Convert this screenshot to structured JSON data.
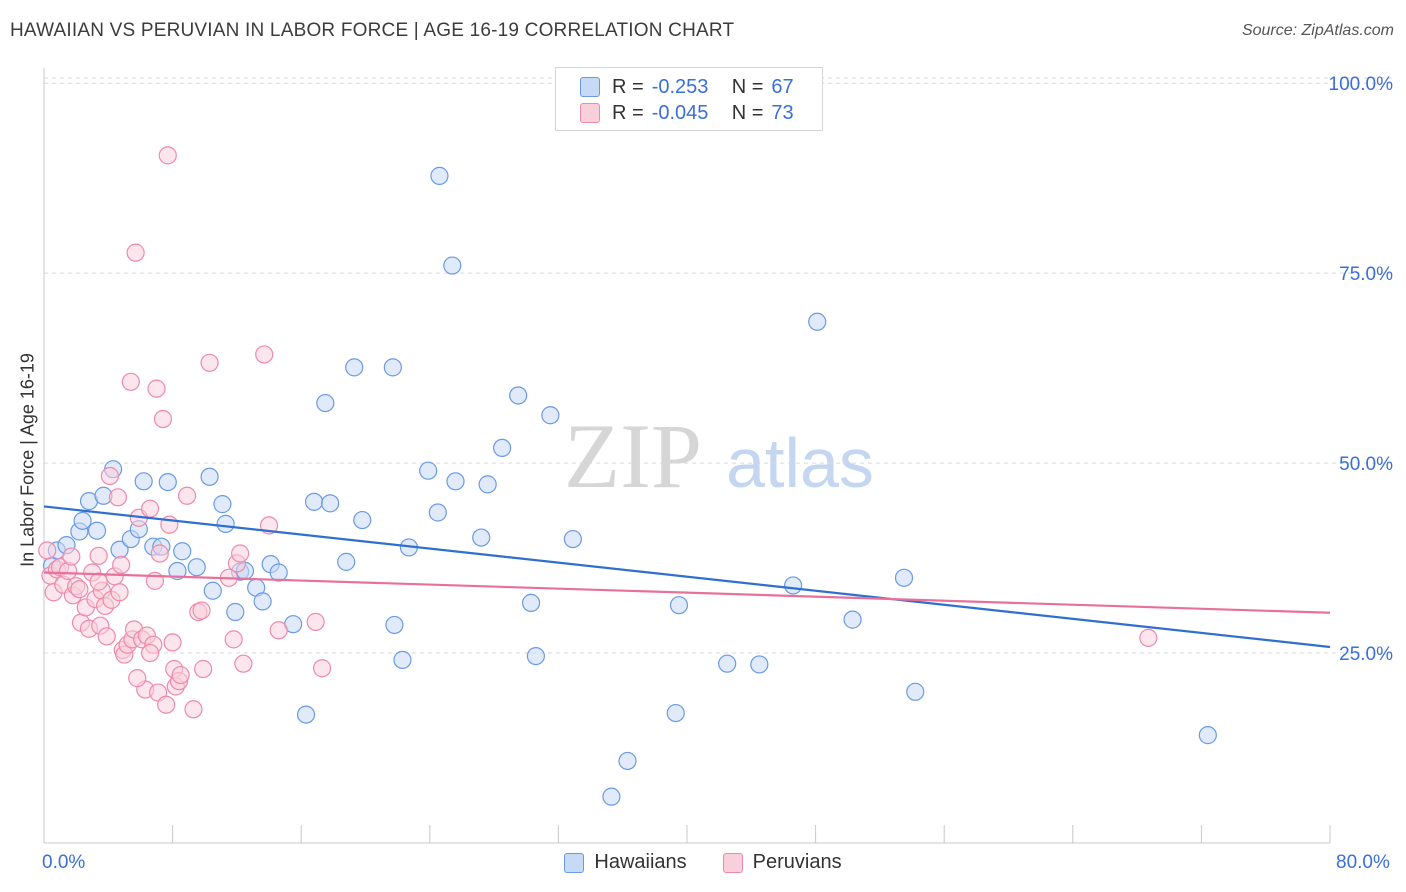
{
  "title": "HAWAIIAN VS PERUVIAN IN LABOR FORCE | AGE 16-19 CORRELATION CHART",
  "source": "Source: ZipAtlas.com",
  "watermark": {
    "zip": "ZIP",
    "atlas": "atlas"
  },
  "legend_stats": [
    {
      "r_label": "R =",
      "r_value": "-0.253",
      "n_label": "N =",
      "n_value": "67",
      "color": "#6a9ae6",
      "fill": "#c6d9f5"
    },
    {
      "r_label": "R =",
      "r_value": "-0.045",
      "n_label": "N =",
      "n_value": "73",
      "color": "#ee8aaa",
      "fill": "#f9cfdc"
    }
  ],
  "chart_data": {
    "type": "scatter",
    "title": "HAWAIIAN VS PERUVIAN IN LABOR FORCE | AGE 16-19 CORRELATION CHART",
    "xlabel": "",
    "ylabel": "In Labor Force | Age 16-19",
    "xlim": [
      0,
      80
    ],
    "ylim": [
      0,
      102
    ],
    "x_tick_labels": [
      "0.0%",
      "80.0%"
    ],
    "y_tick_labels": [
      "25.0%",
      "50.0%",
      "75.0%",
      "100.0%"
    ],
    "y_ticks": [
      25,
      50,
      75,
      100
    ],
    "grid": "horizontal dashed",
    "legend_position": "bottom-center",
    "series": [
      {
        "name": "Hawaiians",
        "color": "#6a9ae6",
        "fill": "#c6d9f5",
        "trend_color": "#2f6fd0",
        "trend": [
          [
            0,
            44.3
          ],
          [
            80,
            25.8
          ]
        ],
        "points": [
          [
            0.5,
            36.5
          ],
          [
            0.8,
            38.5
          ],
          [
            1.4,
            39.2
          ],
          [
            2.2,
            41.0
          ],
          [
            2.4,
            42.4
          ],
          [
            2.8,
            45.0
          ],
          [
            3.3,
            41.1
          ],
          [
            3.7,
            45.7
          ],
          [
            4.3,
            49.2
          ],
          [
            4.7,
            38.6
          ],
          [
            5.4,
            40.0
          ],
          [
            5.9,
            41.3
          ],
          [
            6.2,
            47.6
          ],
          [
            6.8,
            39.0
          ],
          [
            7.3,
            39.0
          ],
          [
            7.7,
            47.5
          ],
          [
            8.3,
            35.8
          ],
          [
            8.6,
            38.4
          ],
          [
            9.5,
            36.3
          ],
          [
            10.3,
            48.2
          ],
          [
            10.5,
            33.2
          ],
          [
            11.1,
            44.6
          ],
          [
            11.3,
            42.0
          ],
          [
            11.9,
            30.4
          ],
          [
            12.2,
            35.7
          ],
          [
            12.5,
            35.8
          ],
          [
            13.2,
            33.6
          ],
          [
            13.6,
            31.8
          ],
          [
            14.1,
            36.7
          ],
          [
            14.6,
            35.6
          ],
          [
            15.5,
            28.8
          ],
          [
            16.3,
            16.9
          ],
          [
            16.8,
            44.9
          ],
          [
            17.5,
            57.9
          ],
          [
            17.8,
            44.7
          ],
          [
            18.8,
            37.0
          ],
          [
            19.3,
            62.6
          ],
          [
            19.8,
            42.5
          ],
          [
            21.7,
            62.6
          ],
          [
            21.8,
            28.7
          ],
          [
            22.3,
            24.1
          ],
          [
            22.7,
            38.9
          ],
          [
            23.9,
            49.0
          ],
          [
            24.5,
            43.5
          ],
          [
            24.6,
            87.8
          ],
          [
            25.4,
            76.0
          ],
          [
            25.6,
            47.6
          ],
          [
            27.2,
            40.2
          ],
          [
            27.6,
            47.2
          ],
          [
            28.5,
            52.0
          ],
          [
            29.5,
            58.9
          ],
          [
            30.3,
            31.6
          ],
          [
            30.6,
            24.6
          ],
          [
            31.5,
            56.3
          ],
          [
            32.9,
            40.0
          ],
          [
            35.3,
            6.1
          ],
          [
            36.3,
            10.8
          ],
          [
            39.3,
            17.1
          ],
          [
            39.5,
            31.3
          ],
          [
            42.5,
            23.6
          ],
          [
            44.5,
            23.5
          ],
          [
            46.6,
            33.9
          ],
          [
            48.1,
            68.6
          ],
          [
            50.3,
            29.4
          ],
          [
            53.5,
            34.9
          ],
          [
            54.2,
            19.9
          ],
          [
            72.4,
            14.2
          ]
        ]
      },
      {
        "name": "Peruvians",
        "color": "#ee8aaa",
        "fill": "#f9cfdc",
        "trend_color": "#e8719a",
        "trend": [
          [
            0,
            35.6
          ],
          [
            80,
            30.3
          ]
        ],
        "points": [
          [
            0.2,
            38.5
          ],
          [
            0.4,
            35.2
          ],
          [
            0.6,
            33.0
          ],
          [
            0.8,
            36.0
          ],
          [
            1.0,
            36.3
          ],
          [
            1.2,
            34.0
          ],
          [
            1.5,
            35.8
          ],
          [
            1.7,
            37.7
          ],
          [
            1.8,
            32.6
          ],
          [
            2.0,
            33.8
          ],
          [
            2.2,
            33.4
          ],
          [
            2.3,
            29.0
          ],
          [
            2.6,
            31.0
          ],
          [
            2.8,
            28.2
          ],
          [
            3.0,
            35.6
          ],
          [
            3.2,
            32.1
          ],
          [
            3.4,
            37.8
          ],
          [
            3.5,
            28.6
          ],
          [
            3.6,
            33.2
          ],
          [
            3.8,
            31.2
          ],
          [
            3.9,
            27.2
          ],
          [
            4.1,
            48.3
          ],
          [
            4.2,
            32.0
          ],
          [
            4.4,
            35.1
          ],
          [
            4.6,
            45.5
          ],
          [
            4.7,
            33.0
          ],
          [
            4.8,
            36.6
          ],
          [
            4.9,
            25.4
          ],
          [
            5.0,
            24.8
          ],
          [
            5.2,
            26.1
          ],
          [
            5.4,
            60.7
          ],
          [
            5.5,
            26.8
          ],
          [
            5.6,
            28.1
          ],
          [
            5.7,
            77.7
          ],
          [
            5.9,
            42.8
          ],
          [
            6.1,
            26.8
          ],
          [
            6.3,
            20.2
          ],
          [
            6.4,
            27.3
          ],
          [
            6.6,
            44.0
          ],
          [
            6.8,
            26.1
          ],
          [
            6.9,
            34.5
          ],
          [
            7.0,
            59.8
          ],
          [
            7.1,
            19.8
          ],
          [
            7.2,
            38.1
          ],
          [
            7.4,
            55.8
          ],
          [
            7.6,
            18.2
          ],
          [
            7.7,
            90.5
          ],
          [
            7.8,
            41.9
          ],
          [
            8.0,
            26.4
          ],
          [
            8.1,
            22.9
          ],
          [
            8.2,
            20.6
          ],
          [
            8.4,
            21.3
          ],
          [
            8.5,
            22.1
          ],
          [
            8.9,
            45.7
          ],
          [
            9.3,
            17.6
          ],
          [
            9.6,
            30.4
          ],
          [
            9.8,
            30.6
          ],
          [
            9.9,
            22.9
          ],
          [
            10.3,
            63.2
          ],
          [
            11.8,
            26.8
          ],
          [
            12.0,
            36.8
          ],
          [
            12.2,
            38.1
          ],
          [
            12.4,
            23.6
          ],
          [
            13.7,
            64.3
          ],
          [
            14.0,
            41.8
          ],
          [
            14.6,
            28.0
          ],
          [
            16.9,
            29.1
          ],
          [
            17.3,
            23.0
          ],
          [
            68.7,
            27.0
          ],
          [
            6.6,
            25.0
          ],
          [
            5.8,
            21.7
          ],
          [
            11.5,
            34.9
          ],
          [
            3.4,
            34.4
          ]
        ]
      }
    ]
  },
  "legend": {
    "items": [
      {
        "label": "Hawaiians",
        "color": "#6a9ae6",
        "fill": "#c6d9f5"
      },
      {
        "label": "Peruvians",
        "color": "#ee8aaa",
        "fill": "#f9cfdc"
      }
    ]
  }
}
